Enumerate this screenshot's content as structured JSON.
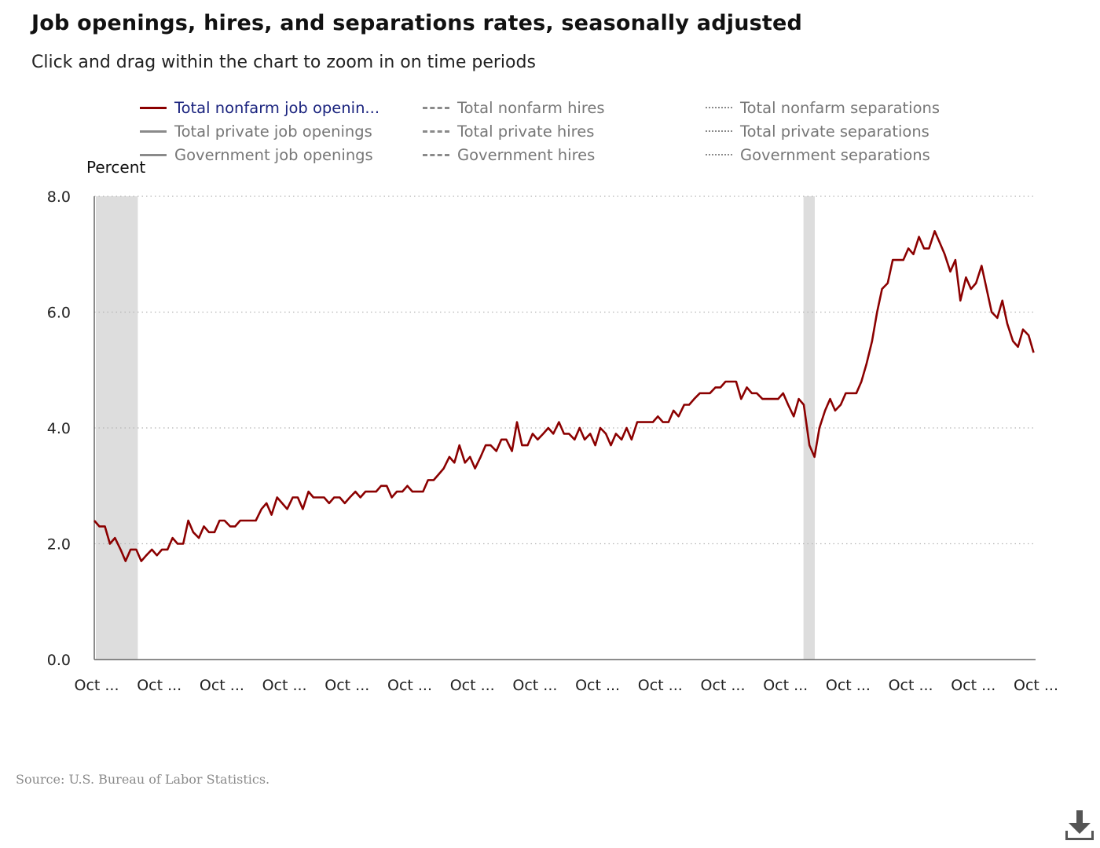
{
  "title": "Job openings, hires, and separations rates, seasonally adjusted",
  "subtitle": "Click and drag within the chart to zoom in on time periods",
  "source": "Source: U.S. Bureau of Labor Statistics.",
  "icons": {
    "download": "download-icon"
  },
  "colors": {
    "series_active": "#8b0000",
    "legend_active_text": "#1a237e",
    "recession_band": "#dddddd",
    "inactive": "#8a8a8a"
  },
  "legend": [
    {
      "label": "Total nonfarm job openin...",
      "style": "solid",
      "active": true
    },
    {
      "label": "Total private job openings",
      "style": "solid",
      "active": false
    },
    {
      "label": "Government job openings",
      "style": "solid",
      "active": false
    },
    {
      "label": "Total nonfarm hires",
      "style": "dashed",
      "active": false
    },
    {
      "label": "Total private hires",
      "style": "dashed",
      "active": false
    },
    {
      "label": "Government hires",
      "style": "dashed",
      "active": false
    },
    {
      "label": "Total nonfarm separations",
      "style": "dotted",
      "active": false
    },
    {
      "label": "Total private separations",
      "style": "dotted",
      "active": false
    },
    {
      "label": "Government separations",
      "style": "dotted",
      "active": false
    }
  ],
  "chart_data": {
    "type": "line",
    "ylabel": "Percent",
    "ylim": [
      0,
      8
    ],
    "yticks": [
      "0.0",
      "2.0",
      "4.0",
      "6.0",
      "8.0"
    ],
    "xticks": [
      "Oct ...",
      "Oct ...",
      "Oct ...",
      "Oct ...",
      "Oct ...",
      "Oct ...",
      "Oct ...",
      "Oct ...",
      "Oct ...",
      "Oct ...",
      "Oct ...",
      "Oct ...",
      "Oct ...",
      "Oct ...",
      "Oct ...",
      "Oct ..."
    ],
    "grid": "horizontal dotted",
    "recessions": [
      {
        "start_tick": 0.0,
        "end_tick": 0.67
      },
      {
        "start_tick": 11.3,
        "end_tick": 11.48
      }
    ],
    "series": [
      {
        "name": "Total nonfarm job openin...",
        "x_ticks": [
          0.0,
          0.08,
          0.17,
          0.25,
          0.33,
          0.42,
          0.5,
          0.58,
          0.67,
          0.75,
          0.83,
          0.92,
          1.0,
          1.08,
          1.17,
          1.25,
          1.33,
          1.42,
          1.5,
          1.58,
          1.67,
          1.75,
          1.83,
          1.92,
          2.0,
          2.08,
          2.17,
          2.25,
          2.33,
          2.42,
          2.5,
          2.58,
          2.67,
          2.75,
          2.83,
          2.92,
          3.0,
          3.08,
          3.17,
          3.25,
          3.33,
          3.42,
          3.5,
          3.58,
          3.67,
          3.75,
          3.83,
          3.92,
          4.0,
          4.08,
          4.17,
          4.25,
          4.33,
          4.42,
          4.5,
          4.58,
          4.67,
          4.75,
          4.83,
          4.92,
          5.0,
          5.08,
          5.17,
          5.25,
          5.33,
          5.42,
          5.5,
          5.58,
          5.67,
          5.75,
          5.83,
          5.92,
          6.0,
          6.08,
          6.17,
          6.25,
          6.33,
          6.42,
          6.5,
          6.58,
          6.67,
          6.75,
          6.83,
          6.92,
          7.0,
          7.08,
          7.17,
          7.25,
          7.33,
          7.42,
          7.5,
          7.58,
          7.67,
          7.75,
          7.83,
          7.92,
          8.0,
          8.08,
          8.17,
          8.25,
          8.33,
          8.42,
          8.5,
          8.58,
          8.67,
          8.75,
          8.83,
          8.92,
          9.0,
          9.08,
          9.17,
          9.25,
          9.33,
          9.42,
          9.5,
          9.58,
          9.67,
          9.75,
          9.83,
          9.92,
          10.0,
          10.08,
          10.17,
          10.25,
          10.33,
          10.42,
          10.5,
          10.58,
          10.67,
          10.75,
          10.83,
          10.92,
          11.0,
          11.08,
          11.17,
          11.25,
          11.33,
          11.42,
          11.5,
          11.58,
          11.67,
          11.75,
          11.83,
          11.92,
          12.0,
          12.08,
          12.17,
          12.25,
          12.33,
          12.42,
          12.5,
          12.58,
          12.67,
          12.75,
          12.83,
          12.92,
          13.0,
          13.08,
          13.17,
          13.25,
          13.33,
          13.42,
          13.5,
          13.58,
          13.67,
          13.75,
          13.83,
          13.92,
          14.0,
          14.08,
          14.17,
          14.25,
          14.33,
          14.42,
          14.5,
          14.58,
          14.67,
          14.75,
          14.83,
          14.92,
          15.0
        ],
        "values": [
          2.4,
          2.3,
          2.3,
          2.0,
          2.1,
          1.9,
          1.7,
          1.9,
          1.9,
          1.7,
          1.8,
          1.9,
          1.8,
          1.9,
          1.9,
          2.1,
          2.0,
          2.0,
          2.4,
          2.2,
          2.1,
          2.3,
          2.2,
          2.2,
          2.4,
          2.4,
          2.3,
          2.3,
          2.4,
          2.4,
          2.4,
          2.4,
          2.6,
          2.7,
          2.5,
          2.8,
          2.7,
          2.6,
          2.8,
          2.8,
          2.6,
          2.9,
          2.8,
          2.8,
          2.8,
          2.7,
          2.8,
          2.8,
          2.7,
          2.8,
          2.9,
          2.8,
          2.9,
          2.9,
          2.9,
          3.0,
          3.0,
          2.8,
          2.9,
          2.9,
          3.0,
          2.9,
          2.9,
          2.9,
          3.1,
          3.1,
          3.2,
          3.3,
          3.5,
          3.4,
          3.7,
          3.4,
          3.5,
          3.3,
          3.5,
          3.7,
          3.7,
          3.6,
          3.8,
          3.8,
          3.6,
          4.1,
          3.7,
          3.7,
          3.9,
          3.8,
          3.9,
          4.0,
          3.9,
          4.1,
          3.9,
          3.9,
          3.8,
          4.0,
          3.8,
          3.9,
          3.7,
          4.0,
          3.9,
          3.7,
          3.9,
          3.8,
          4.0,
          3.8,
          4.1,
          4.1,
          4.1,
          4.1,
          4.2,
          4.1,
          4.1,
          4.3,
          4.2,
          4.4,
          4.4,
          4.5,
          4.6,
          4.6,
          4.6,
          4.7,
          4.7,
          4.8,
          4.8,
          4.8,
          4.5,
          4.7,
          4.6,
          4.6,
          4.5,
          4.5,
          4.5,
          4.5,
          4.6,
          4.4,
          4.2,
          4.5,
          4.4,
          3.7,
          3.5,
          4.0,
          4.3,
          4.5,
          4.3,
          4.4,
          4.6,
          4.6,
          4.6,
          4.8,
          5.1,
          5.5,
          6.0,
          6.4,
          6.5,
          6.9,
          6.9,
          6.9,
          7.1,
          7.0,
          7.3,
          7.1,
          7.1,
          7.4,
          7.2,
          7.0,
          6.7,
          6.9,
          6.2,
          6.6,
          6.4,
          6.5,
          6.8,
          6.4,
          6.0,
          5.9,
          6.2,
          5.8,
          5.5,
          5.4,
          5.7,
          5.6,
          5.3
        ]
      }
    ]
  }
}
